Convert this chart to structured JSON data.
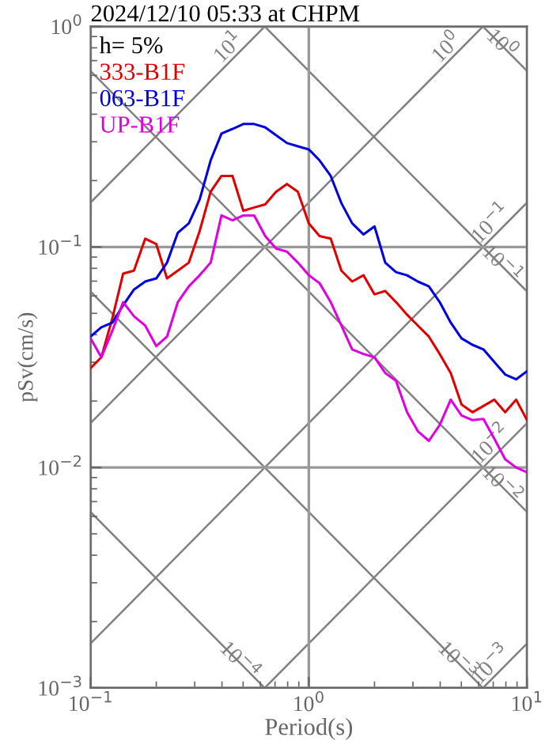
{
  "chart_data": {
    "type": "line",
    "title": "2024/12/10 05:33 at CHPM",
    "xlabel": "Period(s)",
    "ylabel": "pSv(cm/s)",
    "annotations": [
      "h= 5%"
    ],
    "log": "xy",
    "grid": true,
    "legend": "top left",
    "xlim": [
      0.1,
      10
    ],
    "ylim": [
      0.001,
      1
    ],
    "xticks": [
      {
        "value": 0.1,
        "label": "10$^{−1}$"
      },
      {
        "value": 1,
        "label": "10$^{0}$"
      },
      {
        "value": 10,
        "label": "10$^{1}$"
      }
    ],
    "yticks": [
      {
        "value": 0.001,
        "label": "10$^{−3}$"
      },
      {
        "value": 0.01,
        "label": "10$^{−2}$"
      },
      {
        "value": 0.1,
        "label": "10$^{−1}$"
      },
      {
        "value": 1,
        "label": "10$^{0}$"
      }
    ],
    "x": [
      0.1,
      0.112,
      0.126,
      0.141,
      0.158,
      0.178,
      0.2,
      0.224,
      0.251,
      0.282,
      0.316,
      0.355,
      0.398,
      0.447,
      0.501,
      0.562,
      0.631,
      0.708,
      0.794,
      0.891,
      1,
      1.12,
      1.26,
      1.41,
      1.58,
      1.78,
      2,
      2.24,
      2.51,
      2.82,
      3.16,
      3.55,
      3.98,
      4.47,
      5.01,
      5.62,
      6.31,
      7.08,
      7.94,
      8.91,
      10
    ],
    "series": [
      {
        "name": "333-B1F",
        "color": "#e00000",
        "values": [
          0.0282,
          0.0316,
          0.0477,
          0.0757,
          0.0781,
          0.109,
          0.103,
          0.072,
          0.0781,
          0.0849,
          0.118,
          0.178,
          0.21,
          0.21,
          0.146,
          0.151,
          0.156,
          0.178,
          0.193,
          0.178,
          0.128,
          0.112,
          0.109,
          0.0781,
          0.0697,
          0.0744,
          0.061,
          0.0631,
          0.0562,
          0.0493,
          0.044,
          0.0392,
          0.0327,
          0.0268,
          0.0193,
          0.0178,
          0.019,
          0.0203,
          0.0178,
          0.0203,
          0.0164
        ]
      },
      {
        "name": "063-B1F",
        "color": "#0000e0",
        "values": [
          0.0392,
          0.0432,
          0.0454,
          0.0544,
          0.0641,
          0.0697,
          0.072,
          0.0849,
          0.116,
          0.128,
          0.164,
          0.247,
          0.327,
          0.343,
          0.361,
          0.361,
          0.349,
          0.321,
          0.296,
          0.286,
          0.277,
          0.247,
          0.21,
          0.158,
          0.128,
          0.114,
          0.124,
          0.0849,
          0.0769,
          0.0744,
          0.0697,
          0.0663,
          0.0562,
          0.0454,
          0.0385,
          0.036,
          0.0343,
          0.0301,
          0.0264,
          0.0251,
          0.0273
        ]
      },
      {
        "name": "UP-B1F",
        "color": "#e000e0",
        "values": [
          0.0385,
          0.0316,
          0.0418,
          0.0562,
          0.0485,
          0.044,
          0.0355,
          0.0392,
          0.0562,
          0.0663,
          0.0744,
          0.0849,
          0.139,
          0.132,
          0.139,
          0.139,
          0.112,
          0.0984,
          0.0952,
          0.0849,
          0.0744,
          0.0685,
          0.0562,
          0.044,
          0.0343,
          0.0327,
          0.0316,
          0.0268,
          0.0247,
          0.0178,
          0.0146,
          0.0132,
          0.0156,
          0.0203,
          0.0172,
          0.0164,
          0.0166,
          0.0135,
          0.0109,
          0.01,
          0.0095
        ]
      },
      {
        "name": "10$^{1}$",
        "color": "#808080",
        "x": [
          0.1,
          0.628
        ],
        "values": [
          0.159,
          1
        ]
      },
      {
        "name": "10$^{0}$",
        "color": "#808080",
        "x": [
          0.1,
          6.28
        ],
        "values": [
          0.0159,
          1
        ]
      },
      {
        "name": "10$^{−1}$",
        "color": "#808080",
        "x": [
          0.1,
          10
        ],
        "values": [
          0.00159,
          0.159
        ]
      },
      {
        "name": "10$^{−2}$",
        "color": "#808080",
        "x": [
          0.628,
          10
        ],
        "values": [
          0.001,
          0.0159
        ]
      },
      {
        "name": "10$^{−3}$",
        "color": "#808080",
        "x": [
          6.28,
          10
        ],
        "values": [
          0.001,
          0.00159
        ]
      },
      {
        "name": "10$^{0}$",
        "color": "#808080",
        "x": [
          6.28,
          10
        ],
        "values": [
          1,
          0.628
        ]
      },
      {
        "name": "10$^{−1}$",
        "color": "#808080",
        "x": [
          0.628,
          10
        ],
        "values": [
          1,
          0.0628
        ]
      },
      {
        "name": "10$^{−2}$",
        "color": "#808080",
        "x": [
          0.1,
          10
        ],
        "values": [
          0.628,
          0.00628
        ]
      },
      {
        "name": "10$^{−3}$",
        "color": "#808080",
        "x": [
          0.1,
          6.28
        ],
        "values": [
          0.0628,
          0.001
        ]
      },
      {
        "name": "10$^{−4}$",
        "color": "#808080",
        "x": [
          0.1,
          0.628
        ],
        "values": [
          0.00628,
          0.001
        ]
      }
    ]
  }
}
